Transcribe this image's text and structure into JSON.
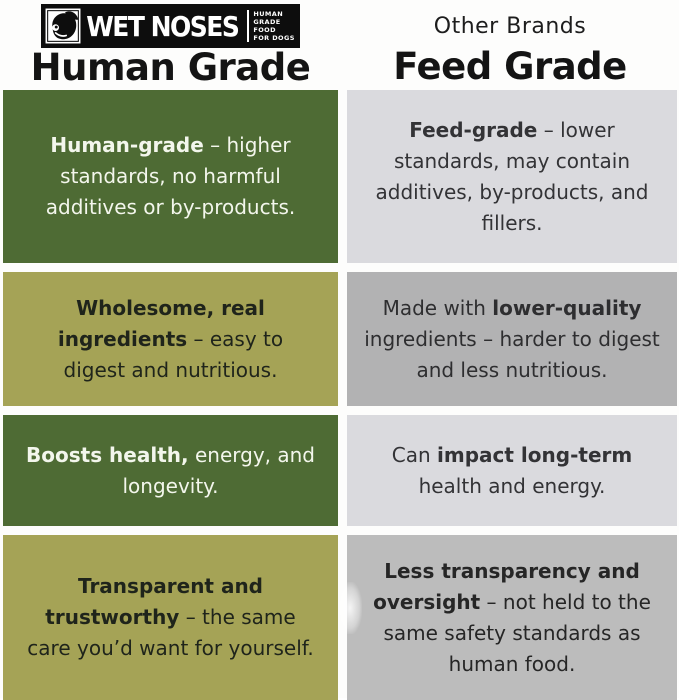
{
  "colors": {
    "dark_green": "#4e6b34",
    "olive_green": "#a5a356",
    "light_gray": "#dadade",
    "mid_gray": "#b2b2b3",
    "soft_gray": "#bcbcbc",
    "logo_background": "#0d0d0d",
    "heading_text": "#141414"
  },
  "header": {
    "left": {
      "logo": {
        "brand": "WET NOSES",
        "tagline_lines": [
          "HUMAN",
          "GRADE",
          "FOOD",
          "FOR DOGS"
        ]
      },
      "title": "Human Grade"
    },
    "right": {
      "subtitle": "Other Brands",
      "title": "Feed Grade"
    }
  },
  "comparison": {
    "rows": [
      {
        "left": {
          "segments": [
            {
              "text": "Human-grade",
              "bold": true
            },
            {
              "text": " – higher standards, no harmful additives or by-products.",
              "bold": false
            }
          ]
        },
        "right": {
          "segments": [
            {
              "text": "Feed-grade",
              "bold": true
            },
            {
              "text": " – lower standards, may contain additives, by-products, and fillers.",
              "bold": false
            }
          ]
        }
      },
      {
        "left": {
          "segments": [
            {
              "text": "Wholesome, real ingredients",
              "bold": true
            },
            {
              "text": " – easy to digest and nutritious.",
              "bold": false
            }
          ]
        },
        "right": {
          "segments": [
            {
              "text": "Made with ",
              "bold": false
            },
            {
              "text": "lower-quality",
              "bold": true
            },
            {
              "text": " ingredients – harder to digest and less nutritious.",
              "bold": false
            }
          ]
        }
      },
      {
        "left": {
          "segments": [
            {
              "text": "Boosts health,",
              "bold": true
            },
            {
              "text": " energy, and longevity.",
              "bold": false
            }
          ]
        },
        "right": {
          "segments": [
            {
              "text": "Can ",
              "bold": false
            },
            {
              "text": "impact long-term",
              "bold": true
            },
            {
              "text": " health and energy.",
              "bold": false
            }
          ]
        }
      },
      {
        "left": {
          "segments": [
            {
              "text": "Transparent and trustworthy",
              "bold": true
            },
            {
              "text": " – the same care you’d want for yourself.",
              "bold": false
            }
          ]
        },
        "right": {
          "segments": [
            {
              "text": "Less transparency and oversight",
              "bold": true
            },
            {
              "text": " – not held to the same safety standards as human food.",
              "bold": false
            }
          ]
        }
      }
    ]
  }
}
